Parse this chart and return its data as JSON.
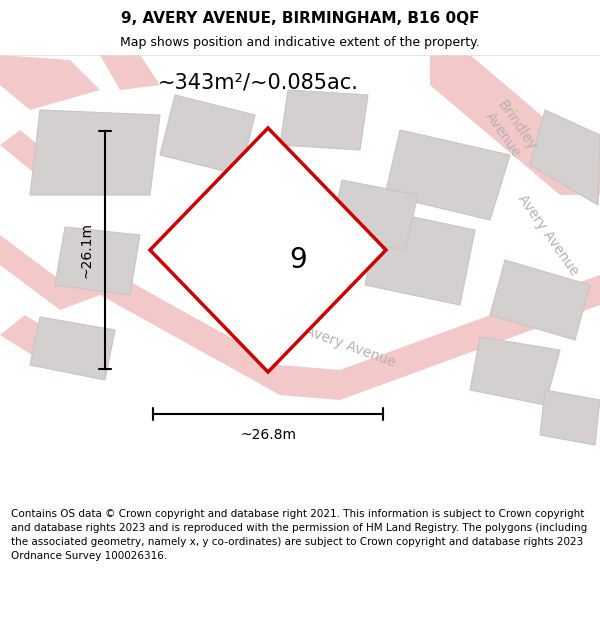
{
  "title": "9, AVERY AVENUE, BIRMINGHAM, B16 0QF",
  "subtitle": "Map shows position and indicative extent of the property.",
  "footer": "Contains OS data © Crown copyright and database right 2021. This information is subject to Crown copyright and database rights 2023 and is reproduced with the permission of HM Land Registry. The polygons (including the associated geometry, namely x, y co-ordinates) are subject to Crown copyright and database rights 2023 Ordnance Survey 100026316.",
  "area_label": "~343m²/~0.085ac.",
  "number_label": "9",
  "width_label": "~26.8m",
  "height_label": "~26.1m",
  "bg_color": "#f2efef",
  "road_color": "#f2c8c8",
  "road_outline_color": "#e8b0b0",
  "building_color": "#d4d0d0",
  "building_outline": "#c8c4c4",
  "plot_outline_color": "#cc0000",
  "plot_fill_color": "#ffffff",
  "street_label_color": "#b8b0b0",
  "title_fontsize": 11,
  "subtitle_fontsize": 9,
  "footer_fontsize": 7.5,
  "area_fontsize": 15,
  "number_fontsize": 20,
  "street_fontsize": 10,
  "measurement_fontsize": 10
}
